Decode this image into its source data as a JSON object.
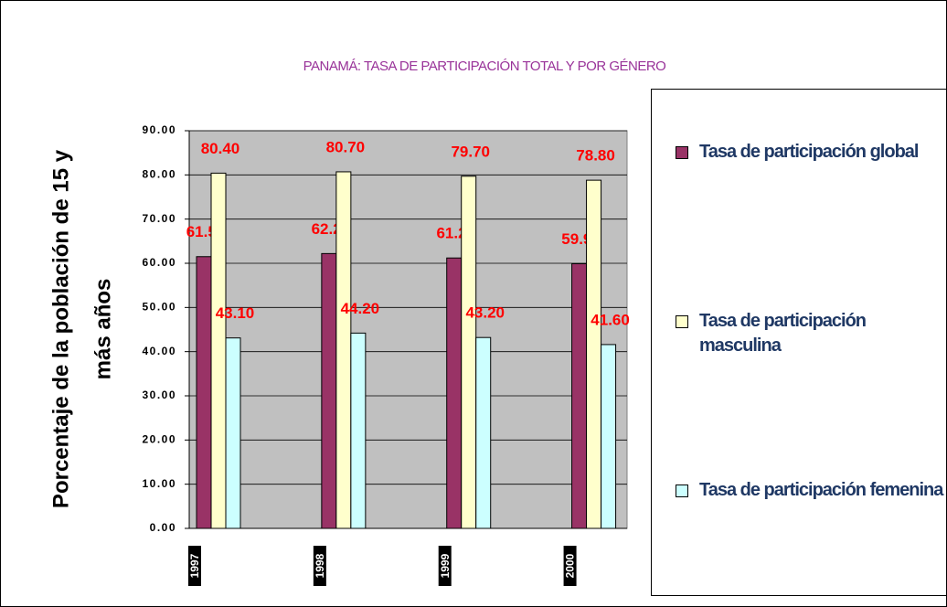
{
  "chart_data": {
    "type": "bar",
    "title": "PANAMÁ: TASA DE PARTICIPACIÓN TOTAL Y POR GÉNERO",
    "ylabel": [
      "Porcentaje de la población de 15 y",
      "más años"
    ],
    "categories": [
      "1997",
      "1998",
      "1999",
      "2000"
    ],
    "series": [
      {
        "name": "Tasa de participación global",
        "color": "#993366",
        "values": [
          61.5,
          62.2,
          61.2,
          59.9
        ],
        "value_labels": [
          "61.50",
          "62.20",
          "61.20",
          "59.90"
        ]
      },
      {
        "name": "Tasa de participación masculina",
        "color": "#ffffcc",
        "values": [
          80.4,
          80.7,
          79.7,
          78.8
        ],
        "value_labels": [
          "80.40",
          "80.70",
          "79.70",
          "78.80"
        ]
      },
      {
        "name": "Tasa de participación femenina",
        "color": "#ccffff",
        "values": [
          43.1,
          44.2,
          43.2,
          41.6
        ],
        "value_labels": [
          "43.10",
          "44.20",
          "43.20",
          "41.60"
        ]
      }
    ],
    "ylim": [
      0,
      90
    ],
    "yticks": [
      {
        "value": 0,
        "label": "0.00"
      },
      {
        "value": 10,
        "label": "10.00"
      },
      {
        "value": 20,
        "label": "20.00"
      },
      {
        "value": 30,
        "label": "30.00"
      },
      {
        "value": 40,
        "label": "40.00"
      },
      {
        "value": 50,
        "label": "50.00"
      },
      {
        "value": 60,
        "label": "60.00"
      },
      {
        "value": 70,
        "label": "70.00"
      },
      {
        "value": 80,
        "label": "80.00"
      },
      {
        "value": 90,
        "label": "90.00"
      }
    ],
    "grid": true,
    "legend": "right"
  }
}
